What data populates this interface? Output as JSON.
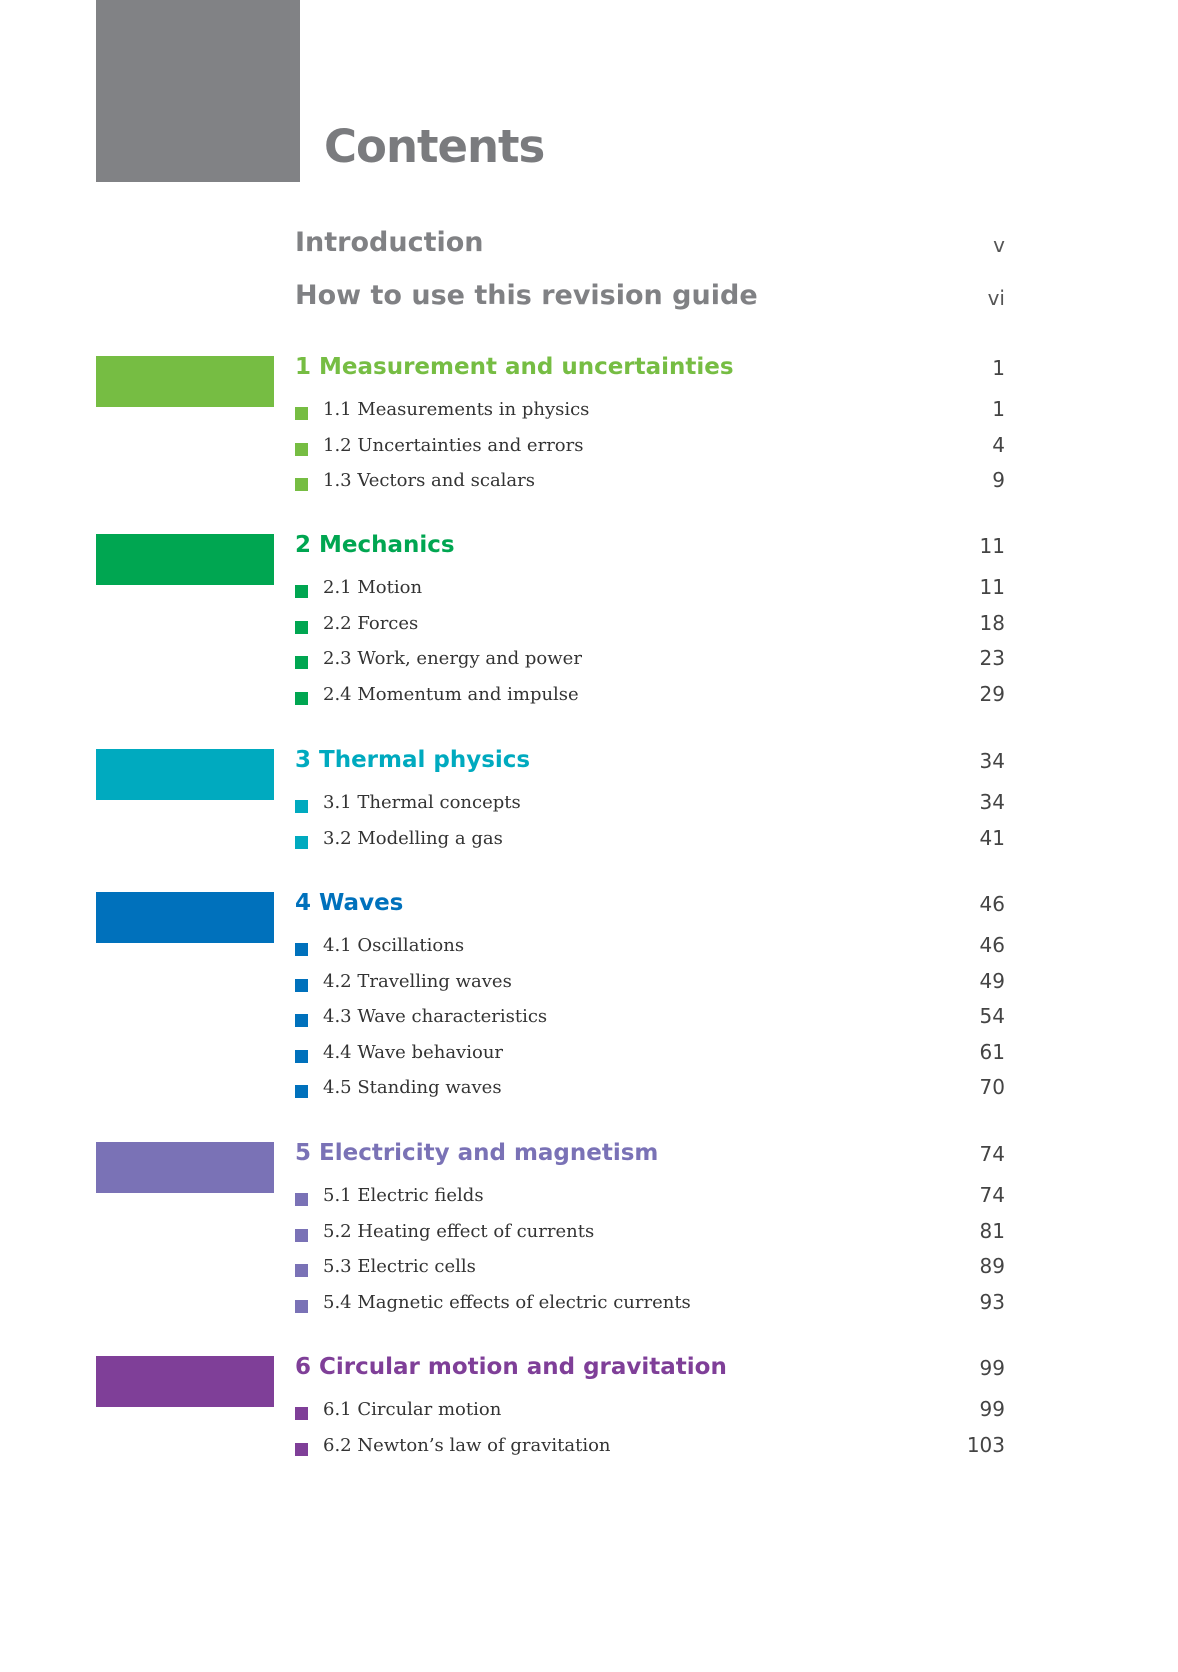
{
  "page_title": "Contents",
  "front_matter": [
    {
      "label": "Introduction",
      "page": "v"
    },
    {
      "label": "How to use this revision guide",
      "page": "vi"
    }
  ],
  "chapters": [
    {
      "title": "1 Measurement and uncertainties",
      "page": "1",
      "color": "#76bd43",
      "topics": [
        {
          "label": "1.1 Measurements in physics",
          "page": "1"
        },
        {
          "label": "1.2 Uncertainties and errors",
          "page": "4"
        },
        {
          "label": "1.3 Vectors and scalars",
          "page": "9"
        }
      ]
    },
    {
      "title": "2 Mechanics",
      "page": "11",
      "color": "#00a651",
      "topics": [
        {
          "label": "2.1 Motion",
          "page": "11"
        },
        {
          "label": "2.2 Forces",
          "page": "18"
        },
        {
          "label": "2.3 Work, energy and power",
          "page": "23"
        },
        {
          "label": "2.4 Momentum and impulse",
          "page": "29"
        }
      ]
    },
    {
      "title": "3 Thermal physics",
      "page": "34",
      "color": "#00aabf",
      "topics": [
        {
          "label": "3.1 Thermal concepts",
          "page": "34"
        },
        {
          "label": "3.2 Modelling a gas",
          "page": "41"
        }
      ]
    },
    {
      "title": "4 Waves",
      "page": "46",
      "color": "#0071bc",
      "topics": [
        {
          "label": "4.1 Oscillations",
          "page": "46"
        },
        {
          "label": "4.2 Travelling waves",
          "page": "49"
        },
        {
          "label": "4.3 Wave characteristics",
          "page": "54"
        },
        {
          "label": "4.4 Wave behaviour",
          "page": "61"
        },
        {
          "label": "4.5 Standing waves",
          "page": "70"
        }
      ]
    },
    {
      "title": "5 Electricity and magnetism",
      "page": "74",
      "color": "#7a72b6",
      "topics": [
        {
          "label": "5.1 Electric fields",
          "page": "74"
        },
        {
          "label": "5.2 Heating effect of currents",
          "page": "81"
        },
        {
          "label": "5.3 Electric cells",
          "page": "89"
        },
        {
          "label": "5.4 Magnetic effects of electric currents",
          "page": "93"
        }
      ]
    },
    {
      "title": "6 Circular motion and gravitation",
      "page": "99",
      "color": "#7f3f98",
      "topics": [
        {
          "label": "6.1 Circular motion",
          "page": "99"
        },
        {
          "label": "6.2 Newton’s law of gravitation",
          "page": "103"
        }
      ]
    }
  ]
}
